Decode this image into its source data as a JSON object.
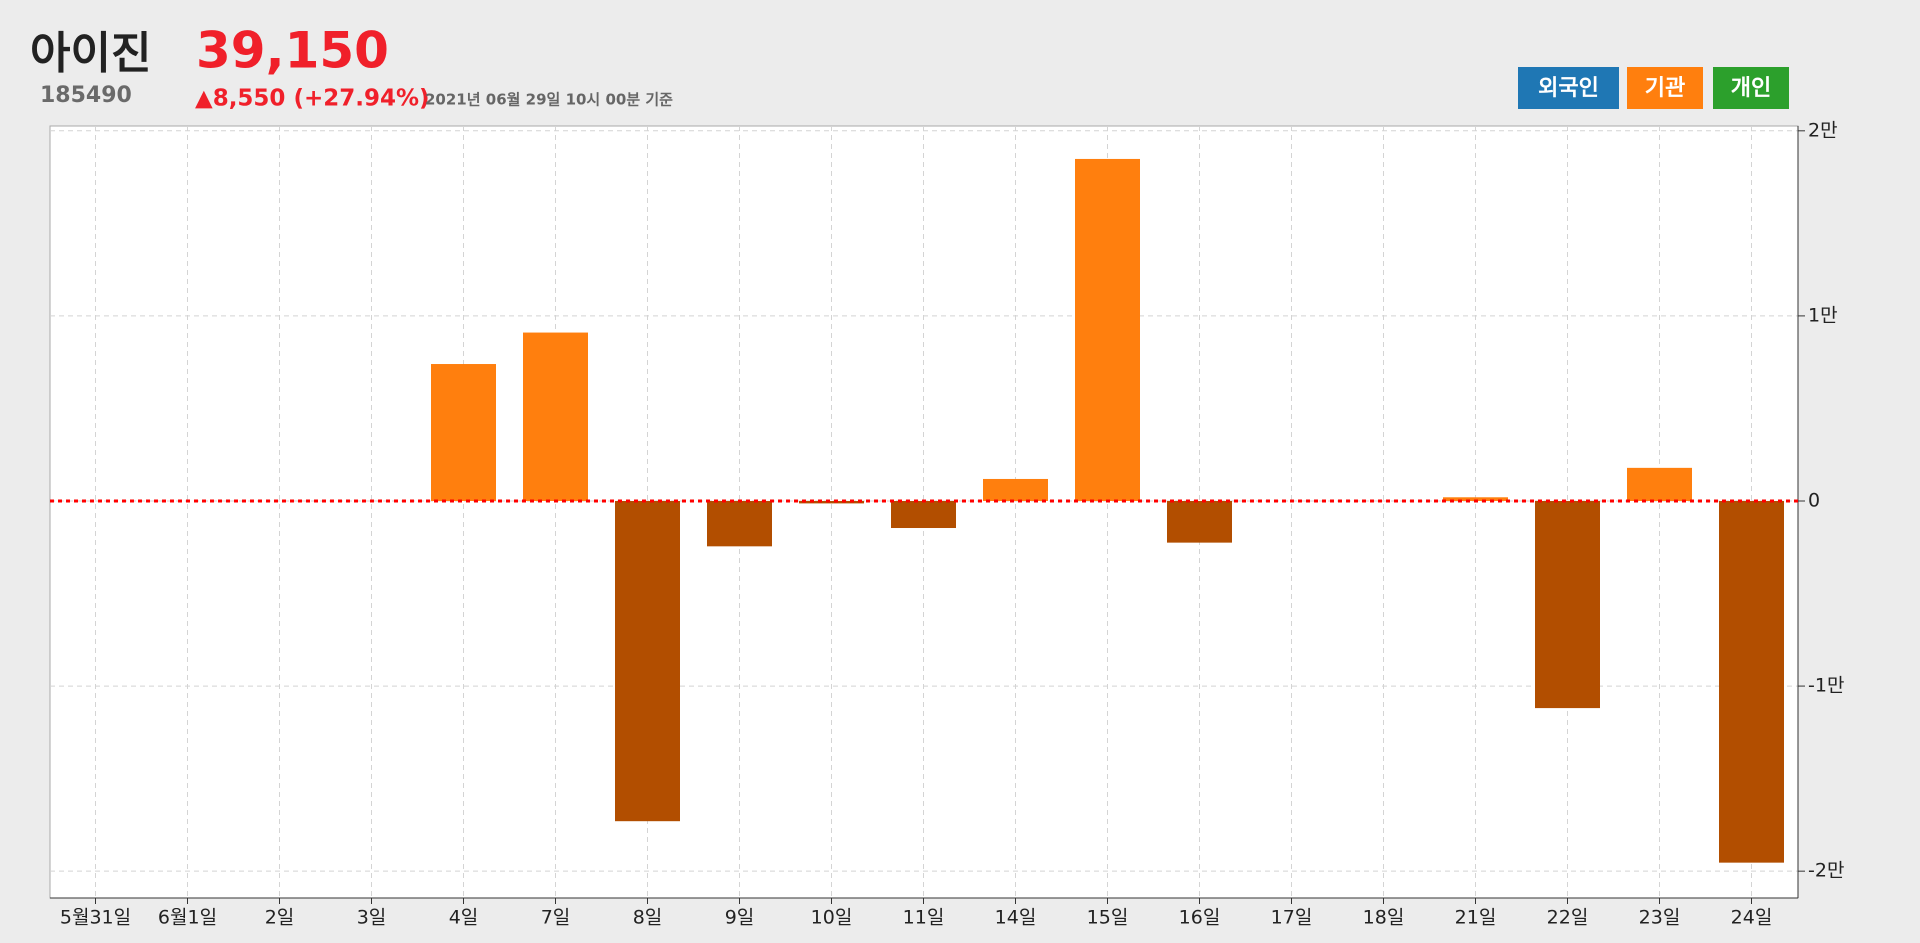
{
  "header": {
    "name": "아이진",
    "price": "39,150",
    "code": "185490",
    "change": "▲8,550 (+27.94%)",
    "timestamp": "2021년 06월 29일 10시 00분 기준"
  },
  "buttons": [
    {
      "label": "외국인",
      "color": "#1f77b4"
    },
    {
      "label": "기관",
      "color": "#ff7f0e"
    },
    {
      "label": "개인",
      "color": "#2ca02c"
    }
  ],
  "chart_data": {
    "type": "bar",
    "categories": [
      "5월31일",
      "6월1일",
      "2일",
      "3일",
      "4일",
      "7일",
      "8일",
      "9일",
      "10일",
      "11일",
      "14일",
      "15일",
      "16일",
      "17일",
      "18일",
      "21일",
      "22일",
      "23일",
      "24일"
    ],
    "values": [
      0,
      0,
      0,
      0,
      7400,
      9100,
      -17300,
      -2450,
      -130,
      -1460,
      1190,
      18480,
      -2250,
      0,
      0,
      200,
      -11190,
      1790,
      -19540
    ],
    "positive_color": "#ff7f0e",
    "negative_color": "#b24e00",
    "zero_line_color": "#ff0000",
    "ylim": [
      -21450,
      20260
    ],
    "yticks": [
      {
        "value": 20000,
        "label": "2만"
      },
      {
        "value": 10000,
        "label": "1만"
      },
      0,
      {
        "value": -10000,
        "label": "-1만"
      },
      {
        "value": -20000,
        "label": "-2만"
      }
    ],
    "grid": true
  }
}
